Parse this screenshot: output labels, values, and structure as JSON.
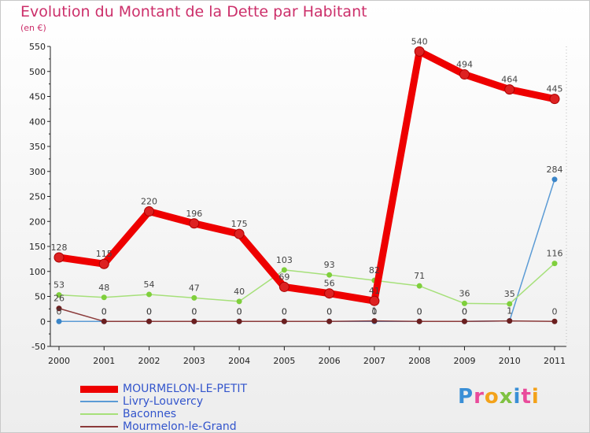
{
  "header": {
    "title": "Evolution du Montant de la Dette par Habitant",
    "unit": "(en €)"
  },
  "logo": {
    "text": "Proxiti"
  },
  "chart_data": {
    "type": "line",
    "title": "Evolution du Montant de la Dette par Habitant",
    "subtitle": "(en €)",
    "x": [
      2000,
      2001,
      2002,
      2003,
      2004,
      2005,
      2006,
      2007,
      2008,
      2009,
      2010,
      2011
    ],
    "ylim": [
      -50,
      550
    ],
    "yticks": [
      -50,
      0,
      50,
      100,
      150,
      200,
      250,
      300,
      350,
      400,
      450,
      500,
      550
    ],
    "grid": false,
    "legend_position": "bottom-left",
    "series": [
      {
        "name": "MOURMELON-LE-PETIT",
        "color": "#ee0000",
        "marker": "#dd2222",
        "values": [
          128,
          115,
          220,
          196,
          175,
          69,
          56,
          41,
          540,
          494,
          464,
          445
        ]
      },
      {
        "name": "Livry-Louvercy",
        "color": "#5b9bd5",
        "marker": "#3a85c8",
        "values": [
          0,
          0,
          0,
          0,
          0,
          0,
          0,
          0,
          0,
          0,
          1,
          284
        ]
      },
      {
        "name": "Baconnes",
        "color": "#a6e07a",
        "marker": "#7fcf3c",
        "values": [
          53,
          48,
          54,
          47,
          40,
          103,
          93,
          82,
          71,
          36,
          35,
          116
        ]
      },
      {
        "name": "Mourmelon-le-Grand",
        "color": "#8b3a3a",
        "marker": "#6b1f1f",
        "values": [
          26,
          0,
          0,
          0,
          0,
          0,
          0,
          1,
          0,
          0,
          1,
          0
        ]
      }
    ]
  }
}
